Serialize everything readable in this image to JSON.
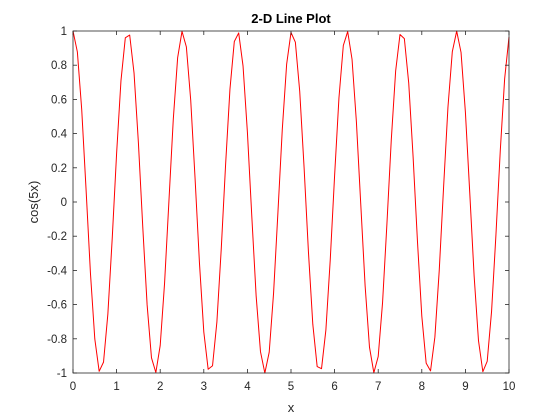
{
  "chart_data": {
    "type": "line",
    "title": "2-D Line Plot",
    "xlabel": "x",
    "ylabel": "cos(5x)",
    "xlim": [
      0,
      10
    ],
    "ylim": [
      -1,
      1
    ],
    "xticks": [
      0,
      1,
      2,
      3,
      4,
      5,
      6,
      7,
      8,
      9,
      10
    ],
    "xtick_labels": [
      "0",
      "1",
      "2",
      "3",
      "4",
      "5",
      "6",
      "7",
      "8",
      "9",
      "10"
    ],
    "yticks": [
      -1,
      -0.8,
      -0.6,
      -0.4,
      -0.2,
      0,
      0.2,
      0.4,
      0.6,
      0.8,
      1
    ],
    "ytick_labels": [
      "-1",
      "-0.8",
      "-0.6",
      "-0.4",
      "-0.2",
      "0",
      "0.2",
      "0.4",
      "0.6",
      "0.8",
      "1"
    ],
    "grid": false,
    "series": [
      {
        "color": "#ff0000",
        "x": [
          0.0,
          0.1,
          0.2,
          0.3,
          0.4,
          0.5,
          0.6,
          0.7,
          0.8,
          0.9,
          1.0,
          1.1,
          1.2,
          1.3,
          1.4,
          1.5,
          1.6,
          1.7,
          1.8,
          1.9,
          2.0,
          2.1,
          2.2,
          2.3,
          2.4,
          2.5,
          2.6,
          2.7,
          2.8,
          2.9,
          3.0,
          3.1,
          3.2,
          3.3,
          3.4,
          3.5,
          3.6,
          3.7,
          3.8,
          3.9,
          4.0,
          4.1,
          4.2,
          4.3,
          4.4,
          4.5,
          4.6,
          4.7,
          4.8,
          4.9,
          5.0,
          5.1,
          5.2,
          5.3,
          5.4,
          5.5,
          5.6,
          5.7,
          5.8,
          5.9,
          6.0,
          6.1,
          6.2,
          6.3,
          6.4,
          6.5,
          6.6,
          6.7,
          6.8,
          6.9,
          7.0,
          7.1,
          7.2,
          7.3,
          7.4,
          7.5,
          7.6,
          7.7,
          7.8,
          7.9,
          8.0,
          8.1,
          8.2,
          8.3,
          8.4,
          8.5,
          8.6,
          8.7,
          8.8,
          8.9,
          9.0,
          9.1,
          9.2,
          9.3,
          9.4,
          9.5,
          9.6,
          9.7,
          9.8,
          9.9,
          10.0
        ],
        "y": [
          1.0,
          0.8776,
          0.5403,
          0.0707,
          -0.4161,
          -0.8011,
          -0.99,
          -0.9365,
          -0.6536,
          -0.2108,
          0.2837,
          0.7087,
          0.9602,
          0.9766,
          0.7539,
          0.3466,
          -0.1455,
          -0.602,
          -0.9111,
          -0.9972,
          -0.8391,
          -0.4755,
          0.0044,
          0.4833,
          0.8439,
          0.9978,
          0.9074,
          0.5949,
          0.1367,
          -0.3548,
          -0.7597,
          -0.9781,
          -0.9577,
          -0.7023,
          -0.2752,
          0.2194,
          0.6603,
          0.9388,
          0.9887,
          0.7953,
          0.4081,
          -0.0796,
          -0.5477,
          -0.8755,
          -0.9998,
          -0.8788,
          -0.5338,
          -0.0619,
          0.424,
          0.8057,
          0.9912,
          0.9343,
          0.6469,
          0.2024,
          -0.2921,
          -0.7148,
          -0.9626,
          -0.9748,
          -0.7486,
          -0.3383,
          0.1543,
          0.6097,
          0.9153,
          0.9966,
          0.8342,
          0.4684,
          -0.0133,
          -0.4906,
          -0.8487,
          -0.9985,
          -0.9037,
          -0.5879,
          -0.128,
          0.3632,
          0.7654,
          0.9796,
          0.9554,
          0.6958,
          0.2666,
          -0.2281,
          -0.6669,
          -0.942,
          -0.9877,
          -0.7899,
          -0.4001,
          0.0885,
          0.5549,
          0.8796,
          0.9994,
          0.8746,
          0.5253,
          0.053,
          -0.4318,
          -0.81,
          -0.9922,
          -0.9315,
          -0.64,
          -0.1938,
          0.3006,
          0.7203,
          0.965
        ]
      }
    ]
  }
}
